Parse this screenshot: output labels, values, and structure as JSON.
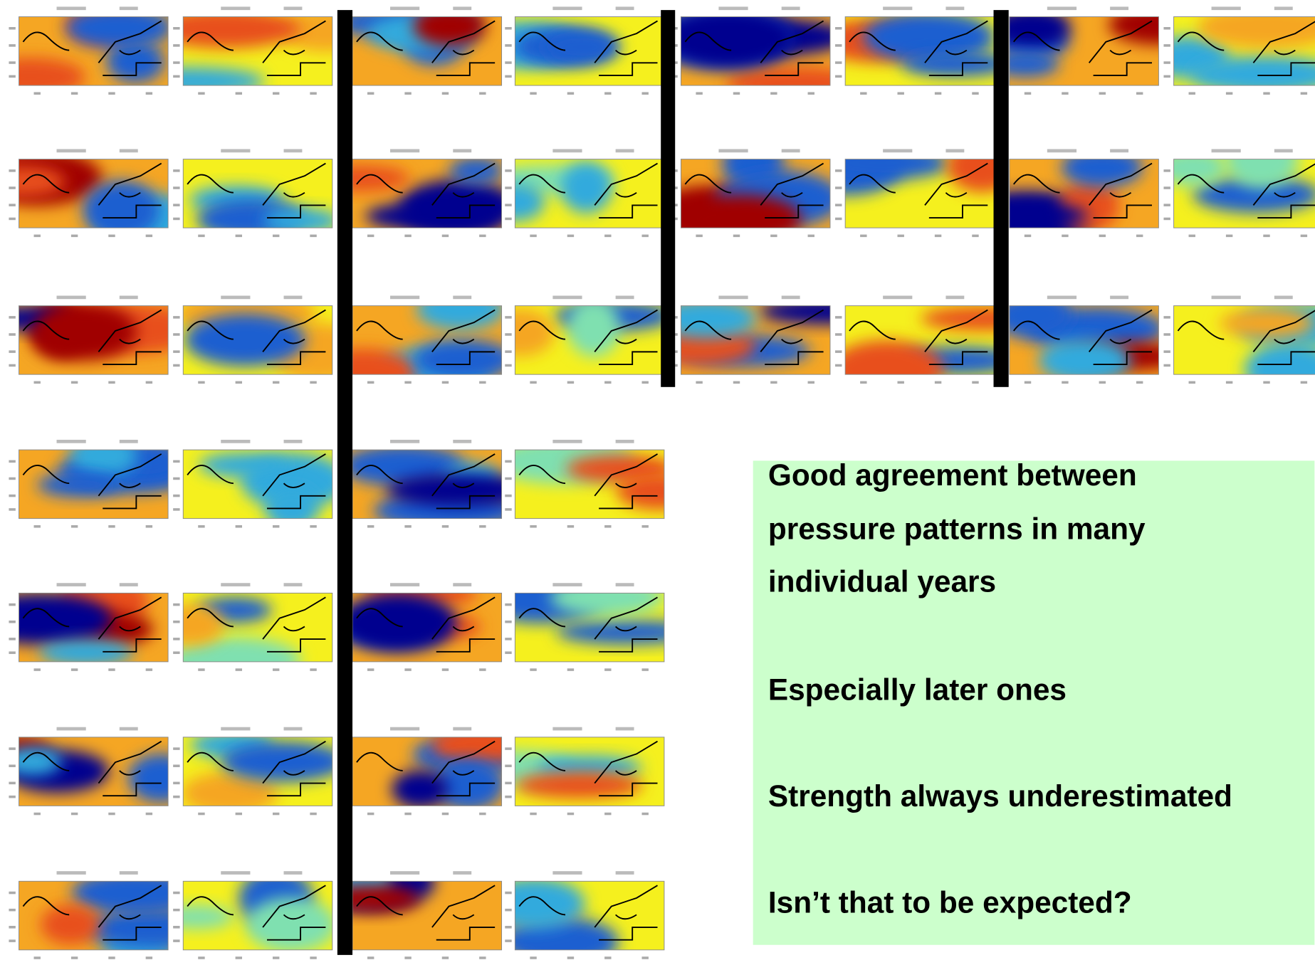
{
  "text_box": {
    "lines": [
      "Good agreement between",
      "pressure patterns in many",
      "individual years",
      "Especially later ones",
      "Strength always underestimated",
      "Isn’t that to be expected?"
    ]
  }
}
